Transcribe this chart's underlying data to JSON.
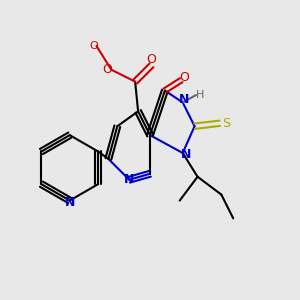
{
  "background_color": "#e8e8e8",
  "atom_colors": {
    "C": "#000000",
    "N": "#0000cc",
    "O": "#cc0000",
    "S": "#aaaa00",
    "H": "#666666"
  },
  "figsize": [
    3.0,
    3.0
  ],
  "dpi": 100
}
